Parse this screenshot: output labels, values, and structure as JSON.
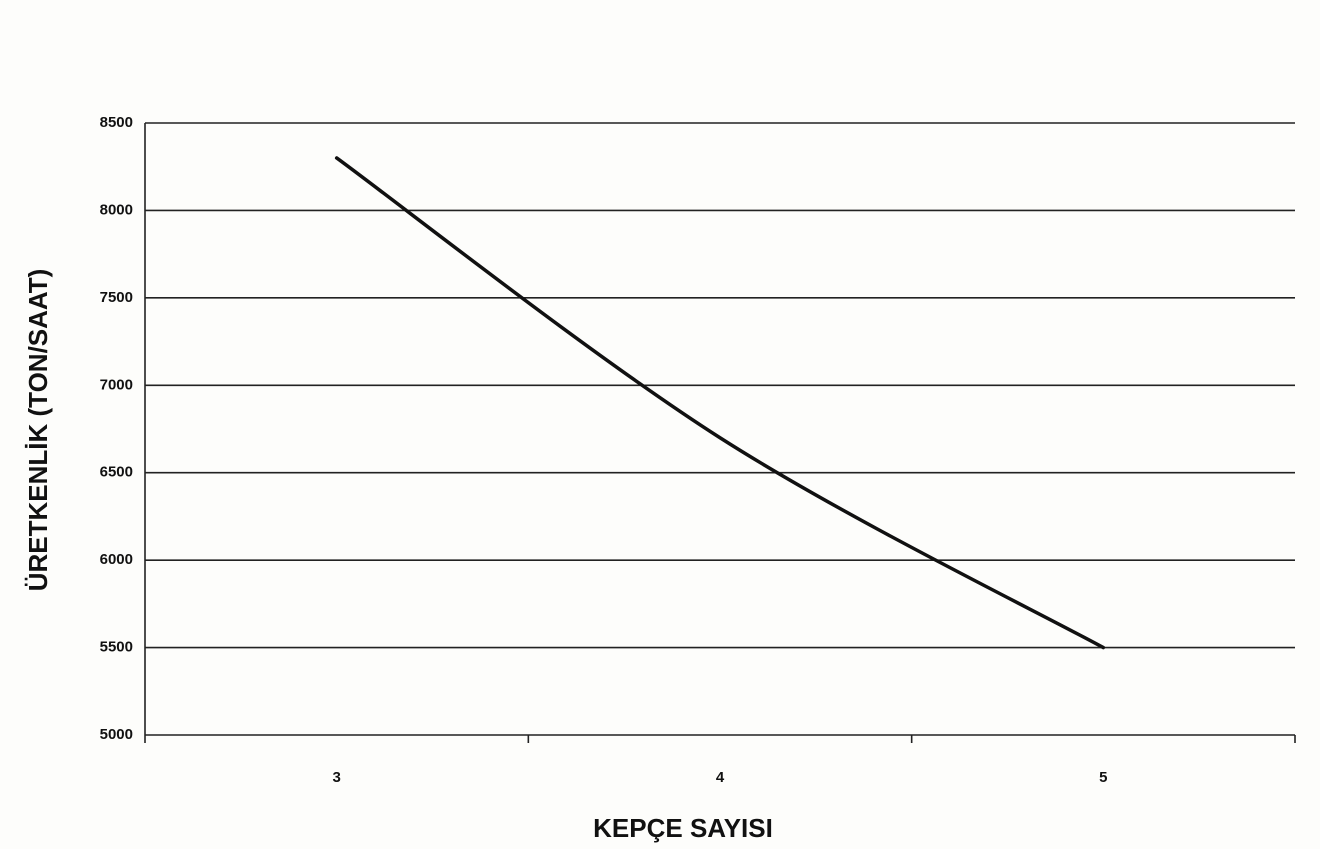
{
  "chart_data": {
    "type": "line",
    "x_label": "KEPÇE SAYISI",
    "y_label": "ÜRETKENLİK (TON/SAAT)",
    "categories": [
      "3",
      "4",
      "5"
    ],
    "series": [
      {
        "name": "Üretkenlik",
        "color": "#111111",
        "values": [
          8300,
          6700,
          5500
        ]
      }
    ],
    "ylim": [
      5000,
      8500
    ],
    "yticks": [
      5000,
      5500,
      6000,
      6500,
      7000,
      7500,
      8000,
      8500
    ],
    "grid": true,
    "smooth": true
  }
}
